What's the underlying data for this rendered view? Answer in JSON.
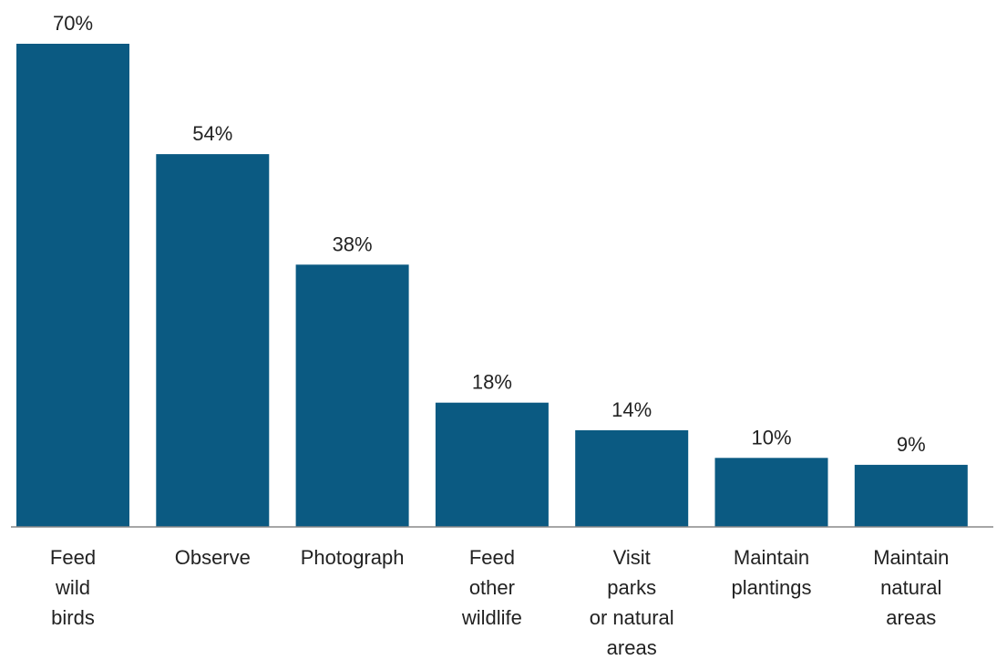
{
  "chart_data": {
    "type": "bar",
    "categories": [
      [
        "Feed",
        "wild",
        "birds"
      ],
      [
        "Observe"
      ],
      [
        "Photograph"
      ],
      [
        "Feed",
        "other",
        "wildlife"
      ],
      [
        "Visit",
        "parks",
        "or natural",
        "areas"
      ],
      [
        "Maintain",
        "plantings"
      ],
      [
        "Maintain",
        "natural",
        "areas"
      ]
    ],
    "values": [
      70,
      54,
      38,
      18,
      14,
      10,
      9
    ],
    "value_labels": [
      "70%",
      "54%",
      "38%",
      "18%",
      "14%",
      "10%",
      "9%"
    ],
    "ylim": [
      0,
      70
    ],
    "grid": false,
    "title": "",
    "xlabel": "",
    "ylabel": "",
    "colors": {
      "bar": "#0b5a82",
      "axis": "#888888",
      "text": "#222222"
    }
  }
}
